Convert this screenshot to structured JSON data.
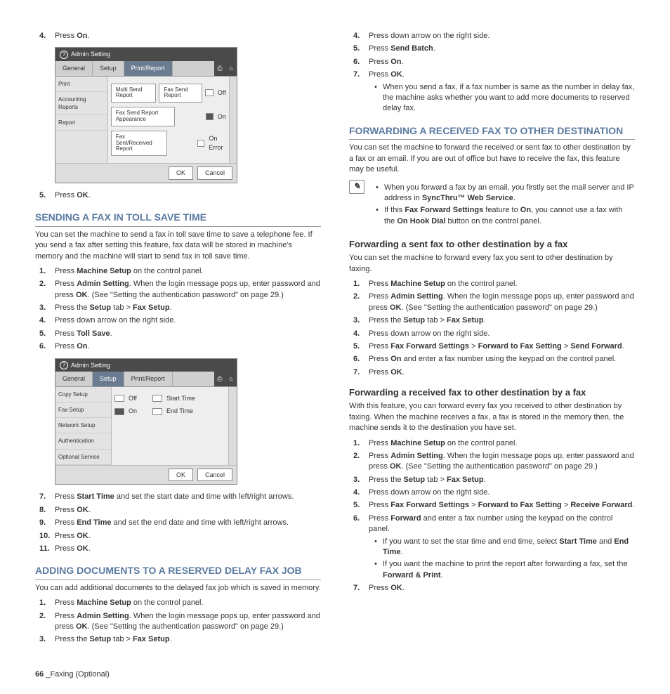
{
  "left": {
    "step4": {
      "num": "4.",
      "prefix": "Press ",
      "bold": "On",
      "suffix": "."
    },
    "ui1": {
      "title": "Admin Setting",
      "tabs": [
        "General",
        "Setup",
        "Print/Report"
      ],
      "side": [
        "Print",
        "Accounting Reports",
        "Report"
      ],
      "btns": {
        "a": "Multi Send\nReport",
        "b": "Fax Send\nReport",
        "b_state": "Off",
        "c": "Fax Send\nReport\nAppearance",
        "c_state": "On",
        "d": "Fax\nSent/Received\nReport",
        "d_state": "On Error"
      },
      "ok": "OK",
      "cancel": "Cancel"
    },
    "step5": {
      "num": "5.",
      "prefix": "Press ",
      "bold": "OK",
      "suffix": "."
    },
    "h_toll": "SENDING A FAX IN TOLL SAVE TIME",
    "p_toll": "You can set the machine to send a fax in toll save time to save a telephone fee. If you send a fax after setting this feature, fax data will be stored in machine's memory and the machine will start to send fax in toll save time.",
    "toll_steps": [
      {
        "num": "1.",
        "t1": "Press ",
        "b1": "Machine Setup",
        "t2": " on the control panel."
      },
      {
        "num": "2.",
        "t1": "Press ",
        "b1": "Admin Setting",
        "t2": ". When the login message pops up, enter password and press ",
        "b2": "OK",
        "t3": ". (See \"Setting the authentication password\" on page 29.)"
      },
      {
        "num": "3.",
        "t1": "Press the ",
        "b1": "Setup",
        "t2": " tab > ",
        "b2": "Fax Setup",
        "t3": "."
      },
      {
        "num": "4.",
        "t1": "Press down arrow on the right side."
      },
      {
        "num": "5.",
        "t1": "Press ",
        "b1": "Toll Save",
        "t2": "."
      },
      {
        "num": "6.",
        "t1": "Press ",
        "b1": "On",
        "t2": "."
      }
    ],
    "ui2": {
      "title": "Admin Setting",
      "tabs": [
        "General",
        "Setup",
        "Print/Report"
      ],
      "side": [
        "Copy Setup",
        "Fax Setup",
        "Network Setup",
        "Authentication",
        "Optional Service"
      ],
      "row1": {
        "a": "Off",
        "b": "Start Time"
      },
      "row2": {
        "a": "On",
        "b": "End Time"
      },
      "ok": "OK",
      "cancel": "Cancel"
    },
    "toll_steps2": [
      {
        "num": "7.",
        "t1": "Press ",
        "b1": "Start Time",
        "t2": " and set the start date and time with left/right arrows."
      },
      {
        "num": "8.",
        "t1": "Press ",
        "b1": "OK",
        "t2": "."
      },
      {
        "num": "9.",
        "t1": "Press ",
        "b1": "End Time",
        "t2": " and set the end date and time with left/right arrows."
      },
      {
        "num": "10.",
        "t1": "Press ",
        "b1": "OK",
        "t2": "."
      },
      {
        "num": "11.",
        "t1": "Press ",
        "b1": "OK",
        "t2": "."
      }
    ],
    "h_add": "ADDING DOCUMENTS TO A RESERVED DELAY FAX JOB",
    "p_add": "You can add additional documents to the delayed fax job which is saved in memory.",
    "add_steps": [
      {
        "num": "1.",
        "t1": "Press ",
        "b1": "Machine Setup",
        "t2": " on the control panel."
      },
      {
        "num": "2.",
        "t1": "Press ",
        "b1": "Admin Setting",
        "t2": ". When the login message pops up, enter password and press ",
        "b2": "OK",
        "t3": ". (See \"Setting the authentication password\" on page 29.)"
      },
      {
        "num": "3.",
        "t1": "Press the ",
        "b1": "Setup",
        "t2": " tab > ",
        "b2": "Fax Setup",
        "t3": "."
      }
    ]
  },
  "right": {
    "cont_steps": [
      {
        "num": "4.",
        "t1": "Press down arrow on the right side."
      },
      {
        "num": "5.",
        "t1": "Press ",
        "b1": "Send Batch",
        "t2": "."
      },
      {
        "num": "6.",
        "t1": "Press ",
        "b1": "On",
        "t2": "."
      },
      {
        "num": "7.",
        "t1": "Press ",
        "b1": "OK",
        "t2": ".",
        "sub": "When you send a fax, if a fax number is same as the number in delay fax, the machine asks whether you want to add more documents to reserved delay fax."
      }
    ],
    "h_fwd": "FORWARDING A RECEIVED FAX TO OTHER DESTINATION",
    "p_fwd": "You can set the machine to forward the received or sent fax to other destination by a fax or an email. If you are out of office but have to receive the fax, this feature may be useful.",
    "note": [
      {
        "t1": "When you forward a fax by an email, you firstly set the mail server and IP address in ",
        "b1": "SyncThru™ Web Service",
        "t2": "."
      },
      {
        "t1": "If this ",
        "b1": "Fax Forward Settings",
        "t2": " feature to ",
        "b2": "On",
        "t3": ", you cannot use a fax with the ",
        "b3": "On Hook Dial",
        "t4": " button on the control panel."
      }
    ],
    "h_sent": "Forwarding a sent fax to other destination by a fax",
    "p_sent": "You can set the machine to forward every fax you sent to other destination by faxing.",
    "sent_steps": [
      {
        "num": "1.",
        "t1": "Press ",
        "b1": "Machine Setup",
        "t2": " on the control panel."
      },
      {
        "num": "2.",
        "t1": "Press ",
        "b1": "Admin Setting",
        "t2": ". When the login message pops up, enter password and press ",
        "b2": "OK",
        "t3": ". (See \"Setting the authentication password\" on page 29.)"
      },
      {
        "num": "3.",
        "t1": "Press the ",
        "b1": "Setup",
        "t2": " tab > ",
        "b2": "Fax Setup",
        "t3": "."
      },
      {
        "num": "4.",
        "t1": "Press down arrow on the right side."
      },
      {
        "num": "5.",
        "t1": "Press ",
        "b1": "Fax Forward Settings",
        "t2": " > ",
        "b2": "Forward to Fax Setting",
        "t3": " > ",
        "b3": "Send Forward",
        "t4": "."
      },
      {
        "num": "6.",
        "t1": "Press ",
        "b1": "On",
        "t2": " and enter a fax number using the keypad on the control panel."
      },
      {
        "num": "7.",
        "t1": "Press ",
        "b1": "OK",
        "t2": "."
      }
    ],
    "h_recv": "Forwarding a received fax to other destination by a fax",
    "p_recv": "With this feature, you can forward every fax you received to other destination by faxing. When the machine receives a fax, a fax is stored in the memory then, the machine sends it to the destination you have set.",
    "recv_steps": [
      {
        "num": "1.",
        "t1": "Press ",
        "b1": "Machine Setup",
        "t2": " on the control panel."
      },
      {
        "num": "2.",
        "t1": "Press ",
        "b1": "Admin Setting",
        "t2": ". When the login message pops up, enter password and press ",
        "b2": "OK",
        "t3": ". (See \"Setting the authentication password\" on page 29.)"
      },
      {
        "num": "3.",
        "t1": "Press the ",
        "b1": "Setup",
        "t2": " tab > ",
        "b2": "Fax Setup",
        "t3": "."
      },
      {
        "num": "4.",
        "t1": "Press down arrow on the right side."
      },
      {
        "num": "5.",
        "t1": "Press ",
        "b1": "Fax Forward Settings",
        "t2": " > ",
        "b2": "Forward to Fax Setting",
        "t3": " > ",
        "b3": "Receive Forward",
        "t4": "."
      },
      {
        "num": "6.",
        "t1": "Press ",
        "b1": "Forward",
        "t2": " and enter a fax number using the keypad on the control panel.",
        "subs": [
          {
            "t1": "If you want to set the star time and end time, select ",
            "b1": "Start Time",
            "t2": " and ",
            "b2": "End Time",
            "t3": "."
          },
          {
            "t1": "If you want the machine to print the report after forwarding a fax, set the ",
            "b1": "Forward & Print",
            "t2": "."
          }
        ]
      },
      {
        "num": "7.",
        "t1": "Press ",
        "b1": "OK",
        "t2": "."
      }
    ]
  },
  "footer": {
    "page": "66",
    "sep": " _",
    "label": "Faxing (Optional)"
  }
}
